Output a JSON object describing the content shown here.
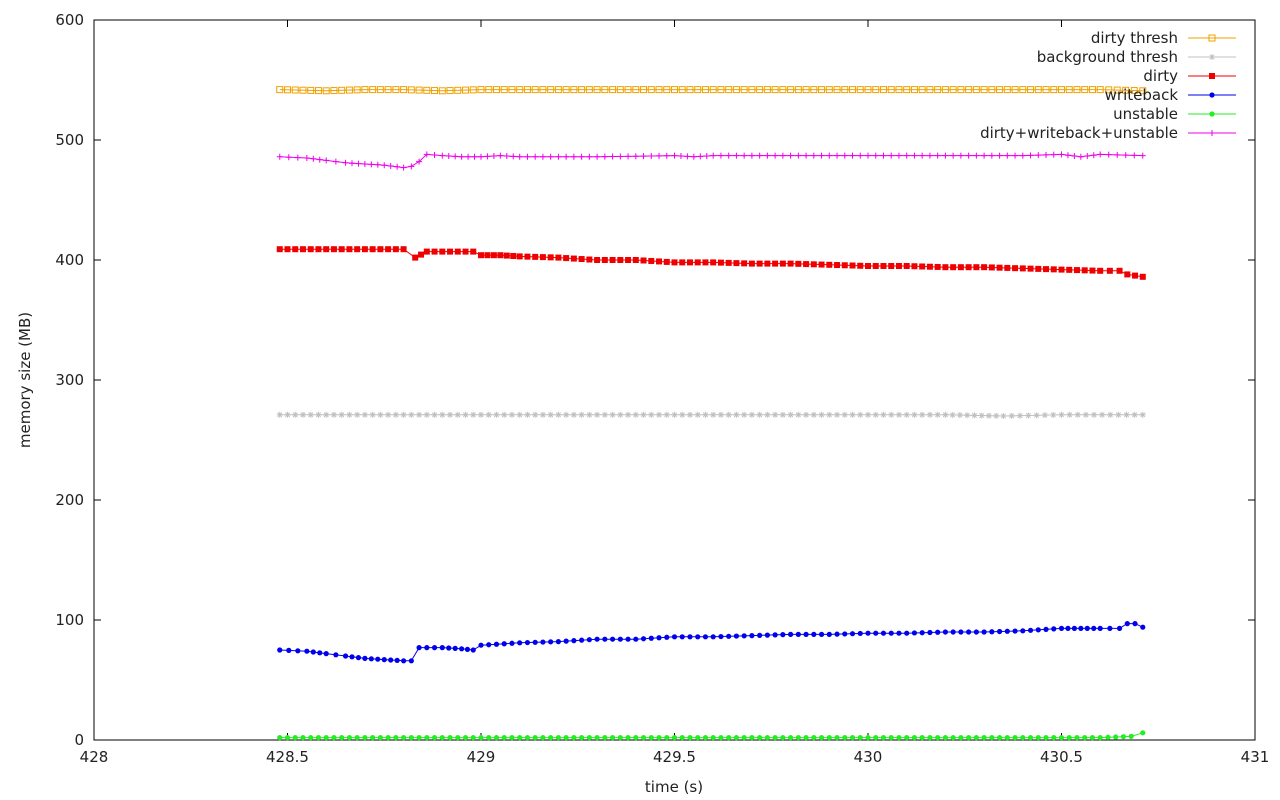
{
  "chart_data": {
    "type": "line",
    "xlabel": "time (s)",
    "ylabel": "memory size (MB)",
    "xlim": [
      428,
      431
    ],
    "ylim": [
      0,
      600
    ],
    "x_ticks": [
      428,
      428.5,
      429,
      429.5,
      430,
      430.5,
      431
    ],
    "x_tick_labels": [
      "428",
      "428.5",
      "429",
      "429.5",
      "430",
      "430.5",
      "431"
    ],
    "y_ticks": [
      0,
      100,
      200,
      300,
      400,
      500,
      600
    ],
    "y_tick_labels": [
      "0",
      "100",
      "200",
      "300",
      "400",
      "500",
      "600"
    ],
    "grid": false,
    "legend_position": "top-right",
    "series": [
      {
        "name": "dirty thresh",
        "color": "#f0a000",
        "marker": "square-open",
        "points": [
          [
            428.48,
            542
          ],
          [
            428.6,
            541
          ],
          [
            428.7,
            542
          ],
          [
            428.8,
            542
          ],
          [
            428.9,
            541
          ],
          [
            429.0,
            542
          ],
          [
            429.2,
            542
          ],
          [
            429.4,
            542
          ],
          [
            429.6,
            542
          ],
          [
            429.8,
            542
          ],
          [
            430.0,
            542
          ],
          [
            430.2,
            542
          ],
          [
            430.4,
            542
          ],
          [
            430.6,
            542
          ],
          [
            430.71,
            541
          ]
        ]
      },
      {
        "name": "background thresh",
        "color": "#c0c0c0",
        "marker": "star",
        "points": [
          [
            428.48,
            271
          ],
          [
            428.7,
            271
          ],
          [
            429.0,
            271
          ],
          [
            429.3,
            271
          ],
          [
            429.6,
            271
          ],
          [
            429.9,
            271
          ],
          [
            430.2,
            271
          ],
          [
            430.35,
            270
          ],
          [
            430.5,
            271
          ],
          [
            430.71,
            271
          ]
        ]
      },
      {
        "name": "dirty",
        "color": "#ee0000",
        "marker": "square",
        "points": [
          [
            428.48,
            409
          ],
          [
            428.6,
            409
          ],
          [
            428.7,
            409
          ],
          [
            428.8,
            409
          ],
          [
            428.83,
            402
          ],
          [
            428.86,
            407
          ],
          [
            428.98,
            407
          ],
          [
            429.0,
            404
          ],
          [
            429.05,
            404
          ],
          [
            429.1,
            403
          ],
          [
            429.2,
            402
          ],
          [
            429.3,
            400
          ],
          [
            429.4,
            400
          ],
          [
            429.5,
            398
          ],
          [
            429.6,
            398
          ],
          [
            429.7,
            397
          ],
          [
            429.8,
            397
          ],
          [
            429.9,
            396
          ],
          [
            430.0,
            395
          ],
          [
            430.1,
            395
          ],
          [
            430.2,
            394
          ],
          [
            430.3,
            394
          ],
          [
            430.4,
            393
          ],
          [
            430.5,
            392
          ],
          [
            430.6,
            391
          ],
          [
            430.65,
            391
          ],
          [
            430.67,
            388
          ],
          [
            430.71,
            386
          ]
        ]
      },
      {
        "name": "writeback",
        "color": "#0000ee",
        "marker": "circle",
        "points": [
          [
            428.48,
            75
          ],
          [
            428.55,
            74
          ],
          [
            428.6,
            72
          ],
          [
            428.65,
            70
          ],
          [
            428.7,
            68
          ],
          [
            428.75,
            67
          ],
          [
            428.8,
            66
          ],
          [
            428.82,
            66
          ],
          [
            428.84,
            77
          ],
          [
            428.9,
            77
          ],
          [
            428.95,
            76
          ],
          [
            428.98,
            75
          ],
          [
            429.0,
            79
          ],
          [
            429.1,
            81
          ],
          [
            429.2,
            82
          ],
          [
            429.3,
            84
          ],
          [
            429.4,
            84
          ],
          [
            429.5,
            86
          ],
          [
            429.6,
            86
          ],
          [
            429.7,
            87
          ],
          [
            429.8,
            88
          ],
          [
            429.9,
            88
          ],
          [
            430.0,
            89
          ],
          [
            430.1,
            89
          ],
          [
            430.2,
            90
          ],
          [
            430.3,
            90
          ],
          [
            430.4,
            91
          ],
          [
            430.5,
            93
          ],
          [
            430.55,
            93
          ],
          [
            430.6,
            93
          ],
          [
            430.65,
            93
          ],
          [
            430.67,
            97
          ],
          [
            430.69,
            97
          ],
          [
            430.71,
            94
          ]
        ]
      },
      {
        "name": "unstable",
        "color": "#22ee22",
        "marker": "circle",
        "points": [
          [
            428.48,
            2
          ],
          [
            428.8,
            2
          ],
          [
            429.2,
            2
          ],
          [
            429.6,
            2
          ],
          [
            430.0,
            2
          ],
          [
            430.4,
            2
          ],
          [
            430.6,
            2
          ],
          [
            430.68,
            3
          ],
          [
            430.71,
            6
          ]
        ]
      },
      {
        "name": "dirty+writeback+unstable",
        "color": "#ee00ee",
        "marker": "plus",
        "points": [
          [
            428.48,
            486
          ],
          [
            428.55,
            485
          ],
          [
            428.6,
            483
          ],
          [
            428.65,
            481
          ],
          [
            428.7,
            480
          ],
          [
            428.75,
            479
          ],
          [
            428.8,
            477
          ],
          [
            428.82,
            478
          ],
          [
            428.84,
            482
          ],
          [
            428.86,
            488
          ],
          [
            428.9,
            487
          ],
          [
            428.95,
            486
          ],
          [
            429.0,
            486
          ],
          [
            429.05,
            487
          ],
          [
            429.1,
            486
          ],
          [
            429.3,
            486
          ],
          [
            429.5,
            487
          ],
          [
            429.55,
            486
          ],
          [
            429.6,
            487
          ],
          [
            429.8,
            487
          ],
          [
            430.0,
            487
          ],
          [
            430.2,
            487
          ],
          [
            430.4,
            487
          ],
          [
            430.5,
            488
          ],
          [
            430.55,
            486
          ],
          [
            430.6,
            488
          ],
          [
            430.71,
            487
          ]
        ]
      }
    ]
  }
}
